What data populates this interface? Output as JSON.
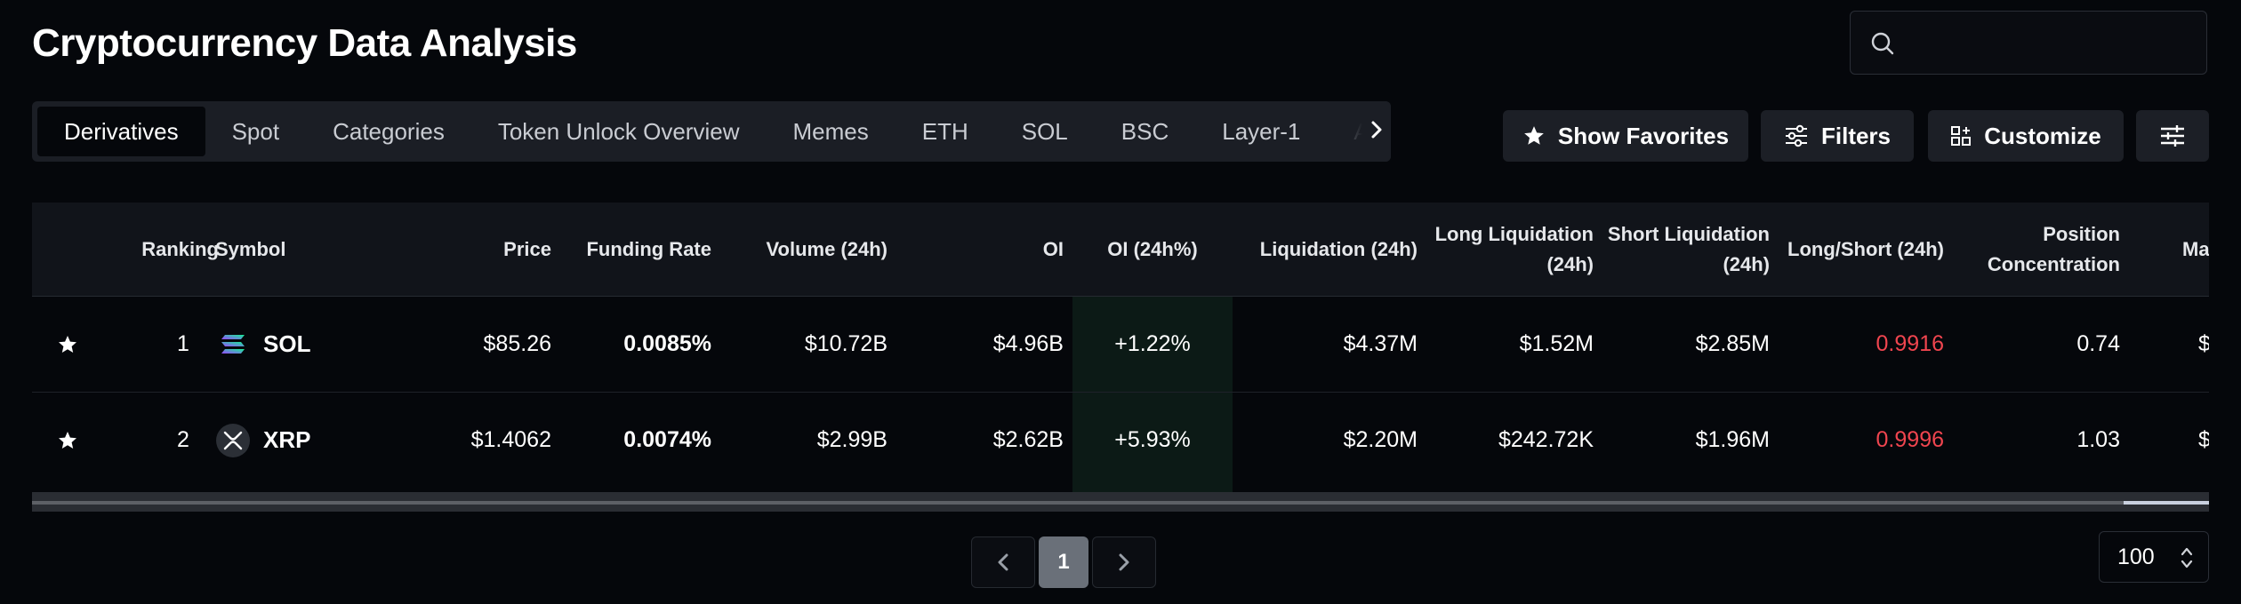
{
  "page": {
    "title": "Cryptocurrency Data Analysis"
  },
  "search": {
    "placeholder": "",
    "value": ""
  },
  "tabs": [
    {
      "label": "Derivatives",
      "active": true
    },
    {
      "label": "Spot"
    },
    {
      "label": "Categories"
    },
    {
      "label": "Token Unlock Overview"
    },
    {
      "label": "Memes"
    },
    {
      "label": "ETH"
    },
    {
      "label": "SOL"
    },
    {
      "label": "BSC"
    },
    {
      "label": "Layer-1"
    },
    {
      "label": "AI"
    }
  ],
  "toolbar": {
    "favorites_label": "Show Favorites",
    "filters_label": "Filters",
    "customize_label": "Customize"
  },
  "table": {
    "headers": {
      "ranking": "Ranking",
      "symbol": "Symbol",
      "price": "Price",
      "funding_rate": "Funding Rate",
      "volume": "Volume (24h)",
      "oi": "OI",
      "oi_change": "OI (24h%)",
      "liquidation": "Liquidation (24h)",
      "long_liq_1": "Long Liquidation",
      "long_liq_2": "(24h)",
      "short_liq_1": "Short Liquidation",
      "short_liq_2": "(24h)",
      "long_short": "Long/Short (24h)",
      "position_1": "Position",
      "position_2": "Concentration",
      "market_cut": "Ma"
    },
    "rows": [
      {
        "ranking": "1",
        "symbol": "SOL",
        "price": "$85.26",
        "funding_rate": "0.0085%",
        "volume": "$10.72B",
        "oi": "$4.96B",
        "oi_change": "+1.22%",
        "liquidation": "$4.37M",
        "long_liq": "$1.52M",
        "short_liq": "$2.85M",
        "long_short": "0.9916",
        "position": "0.74",
        "market_cut": "$"
      },
      {
        "ranking": "2",
        "symbol": "XRP",
        "price": "$1.4062",
        "funding_rate": "0.0074%",
        "volume": "$2.99B",
        "oi": "$2.62B",
        "oi_change": "+5.93%",
        "liquidation": "$2.20M",
        "long_liq": "$242.72K",
        "short_liq": "$1.96M",
        "long_short": "0.9996",
        "position": "1.03",
        "market_cut": "$"
      }
    ]
  },
  "pagination": {
    "current": "1",
    "page_size": "100"
  },
  "colors": {
    "negative": "#f0454f",
    "oi_highlight": "#0c1a16",
    "background": "#05070b"
  },
  "icons": [
    "search-icon",
    "star-icon",
    "filters-icon",
    "customize-icon",
    "settings-sliders-icon",
    "chevron-right-icon",
    "chevron-left-icon",
    "sol-logo-icon",
    "xrp-logo-icon",
    "up-down-arrows-icon"
  ]
}
